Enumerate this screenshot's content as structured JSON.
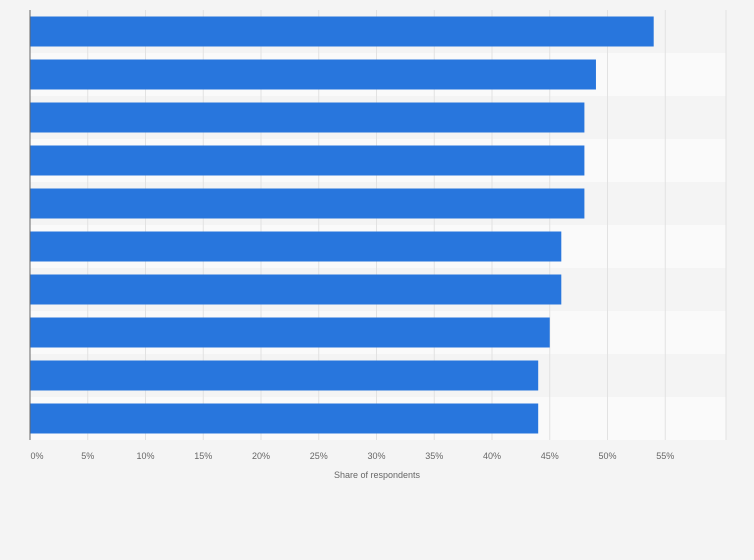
{
  "chart_data": {
    "type": "bar",
    "orientation": "horizontal",
    "categories": [
      "",
      "",
      "",
      "",
      "",
      "",
      "",
      "",
      "",
      ""
    ],
    "values": [
      54,
      49,
      48,
      48,
      48,
      46,
      46,
      45,
      44,
      44
    ],
    "xlabel": "Share of respondents",
    "ylabel": "",
    "xlim": [
      0,
      60
    ],
    "xticks": [
      0,
      5,
      10,
      15,
      20,
      25,
      30,
      35,
      40,
      45,
      50,
      55
    ],
    "xtick_labels": [
      "0%",
      "5%",
      "10%",
      "15%",
      "20%",
      "25%",
      "30%",
      "35%",
      "40%",
      "45%",
      "50%",
      "55%"
    ],
    "grid": true,
    "colors": {
      "bar": "#2876dd",
      "background": "#f4f4f4",
      "band_light": "#fafafa",
      "band_dark": "#f4f4f4",
      "grid": "#e2e2e2",
      "axis": "#666666",
      "text": "#666666"
    }
  }
}
